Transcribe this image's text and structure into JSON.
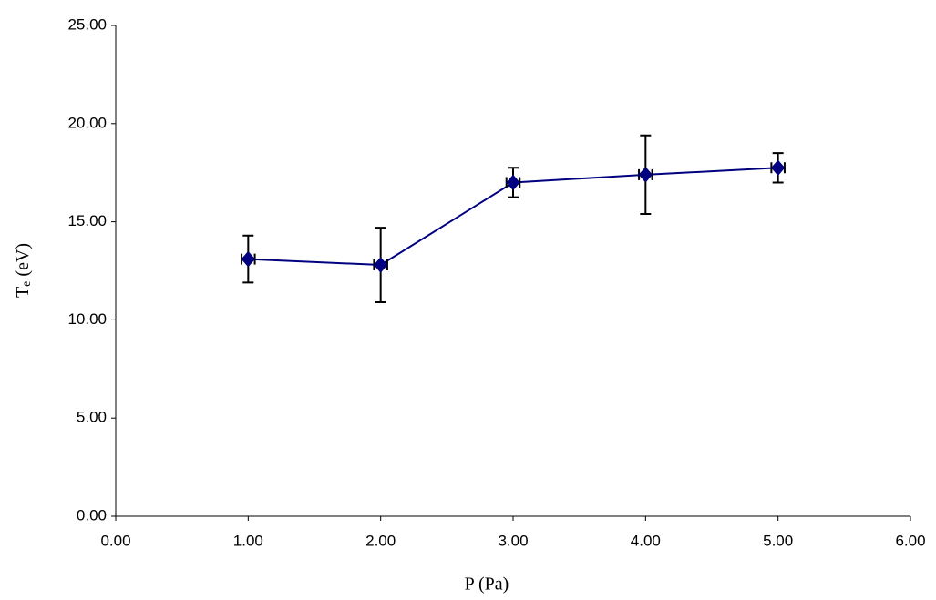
{
  "chart_data": {
    "type": "scatter",
    "xlabel": "P (Pa)",
    "ylabel": [
      "T",
      "e",
      " (eV)"
    ],
    "xlim": [
      0,
      6
    ],
    "xticks": [
      {
        "value": 0,
        "label": "0.00"
      },
      {
        "value": 1,
        "label": "1.00"
      },
      {
        "value": 2,
        "label": "2.00"
      },
      {
        "value": 3,
        "label": "3.00"
      },
      {
        "value": 4,
        "label": "4.00"
      },
      {
        "value": 5,
        "label": "5.00"
      },
      {
        "value": 6,
        "label": "6.00"
      }
    ],
    "ylim": [
      0,
      25
    ],
    "yticks": [
      {
        "value": 0,
        "label": "0.00"
      },
      {
        "value": 5,
        "label": "5.00"
      },
      {
        "value": 10,
        "label": "10.00"
      },
      {
        "value": 15,
        "label": "15.00"
      },
      {
        "value": 20,
        "label": "20.00"
      },
      {
        "value": 25,
        "label": "25.00"
      }
    ],
    "series": [
      {
        "color": "#000080",
        "x": [
          1,
          2,
          3,
          4,
          5
        ],
        "values": [
          13.1,
          12.8,
          17.0,
          17.4,
          17.75
        ],
        "errors": [
          1.2,
          1.9,
          0.75,
          2.0,
          0.75
        ],
        "xerrors": [
          0.05,
          0.05,
          0.05,
          0.05,
          0.05
        ]
      }
    ]
  }
}
